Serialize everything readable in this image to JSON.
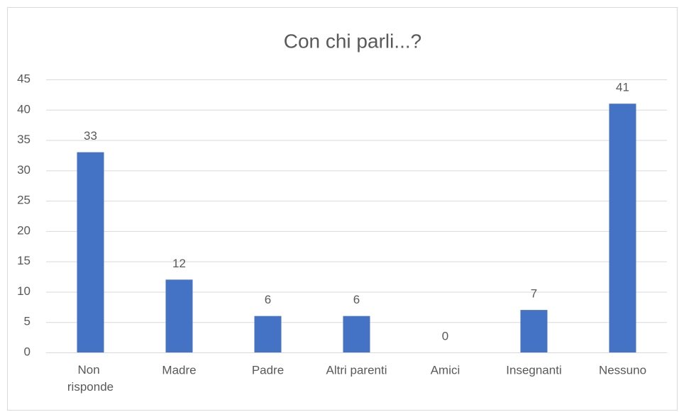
{
  "chart_data": {
    "type": "bar",
    "title": "Con chi parli...?",
    "categories": [
      "Non risponde",
      "Madre",
      "Padre",
      "Altri parenti",
      "Amici",
      "Insegnanti",
      "Nessuno"
    ],
    "values": [
      33,
      12,
      6,
      6,
      0,
      7,
      41
    ],
    "color": "#4472c4",
    "ylim": [
      0,
      45
    ],
    "yticks": [
      0,
      5,
      10,
      15,
      20,
      25,
      30,
      35,
      40,
      45
    ],
    "grid": true
  }
}
